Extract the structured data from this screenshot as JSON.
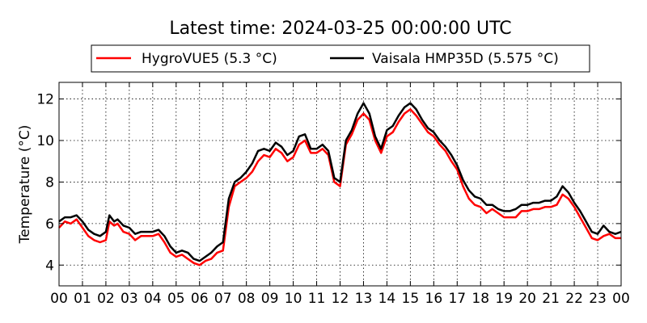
{
  "chart_data": {
    "type": "line",
    "title": "Latest time: 2024-03-25 00:00:00 UTC",
    "xlabel": "",
    "ylabel": "Temperature (°C)",
    "xlim": [
      0,
      24
    ],
    "ylim": [
      3,
      12.8
    ],
    "x_ticks": [
      {
        "pos": 0,
        "label": "00"
      },
      {
        "pos": 1,
        "label": "01"
      },
      {
        "pos": 2,
        "label": "02"
      },
      {
        "pos": 3,
        "label": "03"
      },
      {
        "pos": 4,
        "label": "04"
      },
      {
        "pos": 5,
        "label": "05"
      },
      {
        "pos": 6,
        "label": "06"
      },
      {
        "pos": 7,
        "label": "07"
      },
      {
        "pos": 8,
        "label": "08"
      },
      {
        "pos": 9,
        "label": "09"
      },
      {
        "pos": 10,
        "label": "10"
      },
      {
        "pos": 11,
        "label": "11"
      },
      {
        "pos": 12,
        "label": "12"
      },
      {
        "pos": 13,
        "label": "13"
      },
      {
        "pos": 14,
        "label": "14"
      },
      {
        "pos": 15,
        "label": "15"
      },
      {
        "pos": 16,
        "label": "16"
      },
      {
        "pos": 17,
        "label": "17"
      },
      {
        "pos": 18,
        "label": "18"
      },
      {
        "pos": 19,
        "label": "19"
      },
      {
        "pos": 20,
        "label": "20"
      },
      {
        "pos": 21,
        "label": "21"
      },
      {
        "pos": 22,
        "label": "22"
      },
      {
        "pos": 23,
        "label": "23"
      },
      {
        "pos": 24,
        "label": "00"
      }
    ],
    "y_ticks": [
      {
        "value": 4,
        "label": "4"
      },
      {
        "value": 6,
        "label": "6"
      },
      {
        "value": 8,
        "label": "8"
      },
      {
        "value": 10,
        "label": "10"
      },
      {
        "value": 12,
        "label": "12"
      }
    ],
    "grid": true,
    "legend_position": "top",
    "series": [
      {
        "name": "HygroVUE5 (5.3 °C)",
        "color": "#ff0000",
        "x": [
          0,
          0.25,
          0.5,
          0.75,
          1,
          1.25,
          1.5,
          1.75,
          2,
          2.15,
          2.35,
          2.5,
          2.75,
          3,
          3.25,
          3.5,
          3.75,
          4,
          4.25,
          4.5,
          4.75,
          5,
          5.25,
          5.5,
          5.75,
          6,
          6.25,
          6.5,
          6.75,
          7,
          7.25,
          7.5,
          7.75,
          8,
          8.25,
          8.5,
          8.75,
          9,
          9.25,
          9.5,
          9.75,
          10,
          10.25,
          10.5,
          10.75,
          11,
          11.25,
          11.5,
          11.75,
          12,
          12.25,
          12.5,
          12.75,
          13,
          13.25,
          13.5,
          13.75,
          14,
          14.25,
          14.5,
          14.75,
          15,
          15.25,
          15.5,
          15.75,
          16,
          16.25,
          16.5,
          16.75,
          17,
          17.25,
          17.5,
          17.75,
          18,
          18.25,
          18.5,
          18.75,
          19,
          19.25,
          19.5,
          19.75,
          20,
          20.25,
          20.5,
          20.75,
          21,
          21.25,
          21.5,
          21.75,
          22,
          22.25,
          22.5,
          22.75,
          23,
          23.25,
          23.5,
          23.75,
          24
        ],
        "values": [
          5.8,
          6.1,
          6.0,
          6.2,
          5.8,
          5.4,
          5.2,
          5.1,
          5.2,
          6.1,
          5.9,
          6.0,
          5.6,
          5.5,
          5.2,
          5.4,
          5.4,
          5.4,
          5.5,
          5.1,
          4.6,
          4.4,
          4.5,
          4.3,
          4.1,
          4.0,
          4.2,
          4.3,
          4.6,
          4.7,
          6.8,
          7.8,
          8.0,
          8.2,
          8.5,
          9.0,
          9.3,
          9.2,
          9.6,
          9.4,
          9.0,
          9.2,
          9.8,
          10.0,
          9.4,
          9.4,
          9.6,
          9.3,
          8.0,
          7.8,
          9.8,
          10.3,
          11.0,
          11.3,
          11.0,
          10.0,
          9.4,
          10.2,
          10.4,
          10.9,
          11.3,
          11.5,
          11.2,
          10.8,
          10.4,
          10.2,
          9.8,
          9.5,
          9.0,
          8.6,
          7.8,
          7.2,
          6.9,
          6.8,
          6.5,
          6.7,
          6.5,
          6.3,
          6.3,
          6.3,
          6.6,
          6.6,
          6.7,
          6.7,
          6.8,
          6.8,
          6.9,
          7.4,
          7.2,
          6.8,
          6.3,
          5.8,
          5.3,
          5.2,
          5.4,
          5.5,
          5.3,
          5.3
        ]
      },
      {
        "name": "Vaisala HMP35D (5.575 °C)",
        "color": "#000000",
        "x": [
          0,
          0.25,
          0.5,
          0.75,
          1,
          1.25,
          1.5,
          1.75,
          2,
          2.15,
          2.35,
          2.5,
          2.75,
          3,
          3.25,
          3.5,
          3.75,
          4,
          4.25,
          4.5,
          4.75,
          5,
          5.25,
          5.5,
          5.75,
          6,
          6.25,
          6.5,
          6.75,
          7,
          7.25,
          7.5,
          7.75,
          8,
          8.25,
          8.5,
          8.75,
          9,
          9.25,
          9.5,
          9.75,
          10,
          10.25,
          10.5,
          10.75,
          11,
          11.25,
          11.5,
          11.75,
          12,
          12.25,
          12.5,
          12.75,
          13,
          13.25,
          13.5,
          13.75,
          14,
          14.25,
          14.5,
          14.75,
          15,
          15.25,
          15.5,
          15.75,
          16,
          16.25,
          16.5,
          16.75,
          17,
          17.25,
          17.5,
          17.75,
          18,
          18.25,
          18.5,
          18.75,
          19,
          19.25,
          19.5,
          19.75,
          20,
          20.25,
          20.5,
          20.75,
          21,
          21.25,
          21.5,
          21.75,
          22,
          22.25,
          22.5,
          22.75,
          23,
          23.25,
          23.5,
          23.75,
          24
        ],
        "values": [
          6.1,
          6.3,
          6.3,
          6.4,
          6.1,
          5.7,
          5.5,
          5.4,
          5.6,
          6.4,
          6.1,
          6.2,
          5.9,
          5.8,
          5.5,
          5.6,
          5.6,
          5.6,
          5.7,
          5.4,
          4.9,
          4.6,
          4.7,
          4.6,
          4.3,
          4.2,
          4.4,
          4.6,
          4.9,
          5.1,
          7.2,
          8.0,
          8.2,
          8.5,
          8.9,
          9.5,
          9.6,
          9.5,
          9.9,
          9.7,
          9.3,
          9.5,
          10.2,
          10.3,
          9.6,
          9.6,
          9.8,
          9.5,
          8.2,
          8.0,
          10.0,
          10.5,
          11.3,
          11.8,
          11.3,
          10.2,
          9.6,
          10.5,
          10.7,
          11.2,
          11.6,
          11.8,
          11.5,
          11.0,
          10.6,
          10.4,
          10.0,
          9.7,
          9.3,
          8.8,
          8.1,
          7.6,
          7.3,
          7.2,
          6.9,
          6.9,
          6.7,
          6.6,
          6.6,
          6.7,
          6.9,
          6.9,
          7.0,
          7.0,
          7.1,
          7.1,
          7.3,
          7.8,
          7.5,
          7.0,
          6.6,
          6.1,
          5.6,
          5.5,
          5.9,
          5.6,
          5.5,
          5.6
        ]
      }
    ]
  }
}
